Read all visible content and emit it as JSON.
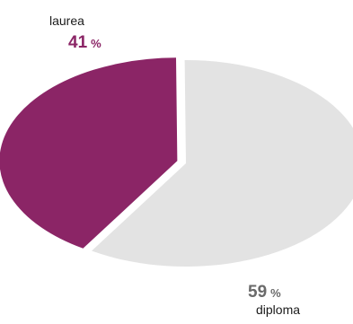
{
  "chart_data": {
    "type": "pie",
    "title": "",
    "unit": "%",
    "slices": [
      {
        "label": "laurea",
        "value": 41,
        "color": "#8b2566"
      },
      {
        "label": "diploma",
        "value": 59,
        "color": "#e3e3e3"
      }
    ]
  }
}
